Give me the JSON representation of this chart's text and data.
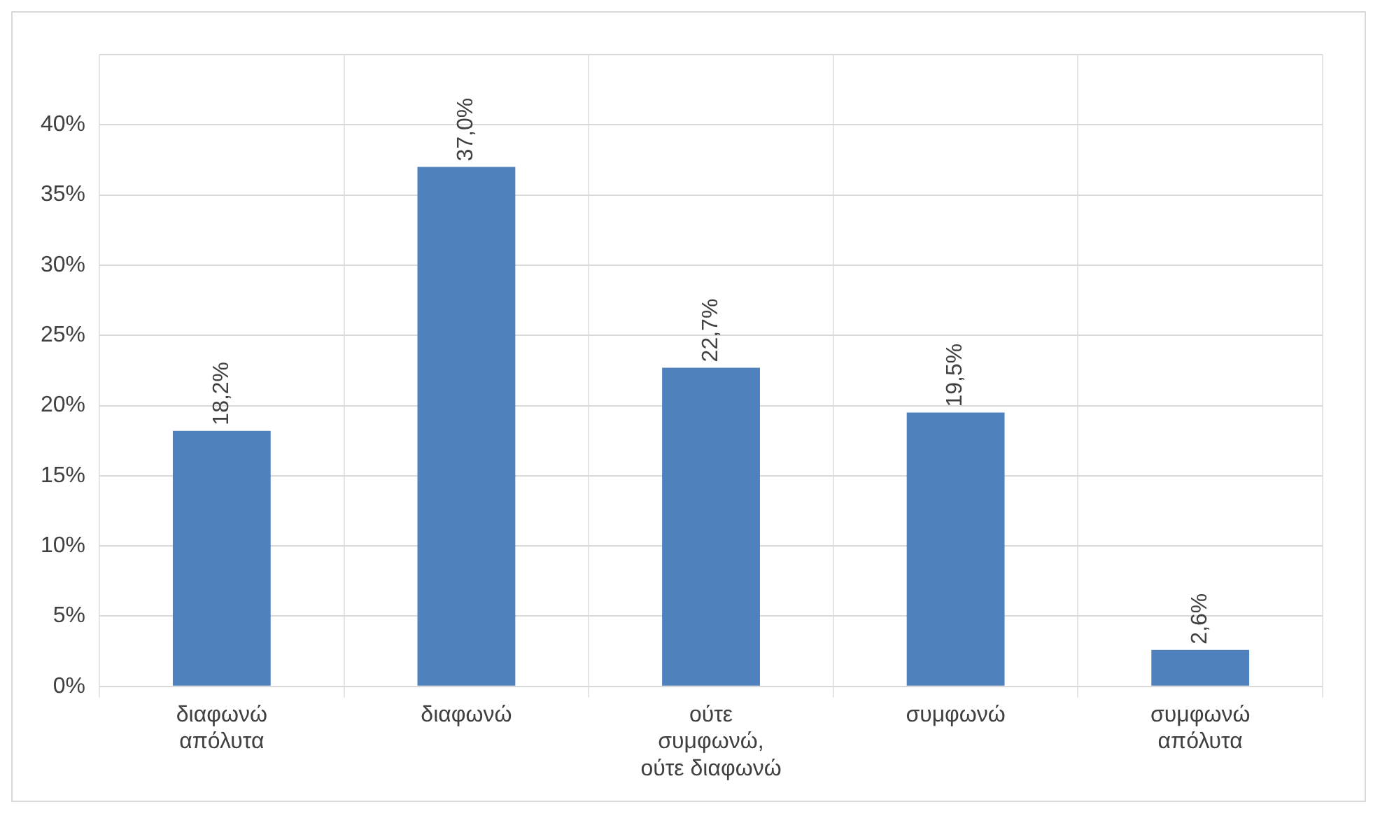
{
  "chart_data": {
    "type": "bar",
    "categories": [
      "διαφωνώ απόλυτα",
      "διαφωνώ",
      "ούτε συμφωνώ, ούτε διαφωνώ",
      "συμφωνώ",
      "συμφωνώ απόλυτα"
    ],
    "values": [
      18.2,
      37.0,
      22.7,
      19.5,
      2.6
    ],
    "value_labels": [
      "18,2%",
      "37,0%",
      "22,7%",
      "19,5%",
      "2,6%"
    ],
    "color": "#4f81bd",
    "ylim": [
      0,
      45
    ],
    "yticks": [
      {
        "value": 0,
        "label": "0%"
      },
      {
        "value": 5,
        "label": "5%"
      },
      {
        "value": 10,
        "label": "10%"
      },
      {
        "value": 15,
        "label": "15%"
      },
      {
        "value": 20,
        "label": "20%"
      },
      {
        "value": 25,
        "label": "25%"
      },
      {
        "value": 30,
        "label": "30%"
      },
      {
        "value": 35,
        "label": "35%"
      },
      {
        "value": 40,
        "label": "40%"
      },
      {
        "value": 45,
        "label": null
      }
    ],
    "grid": true
  }
}
